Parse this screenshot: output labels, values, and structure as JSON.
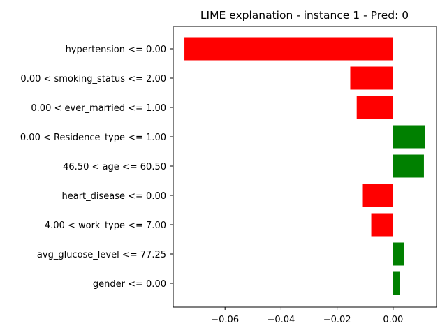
{
  "chart_data": {
    "type": "bar",
    "orientation": "horizontal",
    "title": "LIME explanation - instance 1 - Pred: 0",
    "xlabel": "",
    "ylabel": "",
    "xlim": [
      -0.0785,
      0.0155
    ],
    "xticks": [
      -0.06,
      -0.04,
      -0.02,
      0.0
    ],
    "xtick_labels": [
      "−0.06",
      "−0.04",
      "−0.02",
      "0.00"
    ],
    "grid": false,
    "legend": "none",
    "categories": [
      "hypertension <= 0.00",
      "0.00 < smoking_status <= 2.00",
      "0.00 < ever_married <= 1.00",
      "0.00 < Residence_type <= 1.00",
      "46.50 < age <= 60.50",
      "heart_disease <= 0.00",
      "4.00 < work_type <= 7.00",
      "avg_glucose_level <= 77.25",
      "gender <= 0.00"
    ],
    "values": [
      -0.0745,
      -0.0153,
      -0.013,
      0.0113,
      0.011,
      -0.0108,
      -0.0078,
      0.004,
      0.0023
    ],
    "colors": {
      "positive": "#008000",
      "negative": "#ff0000"
    }
  }
}
